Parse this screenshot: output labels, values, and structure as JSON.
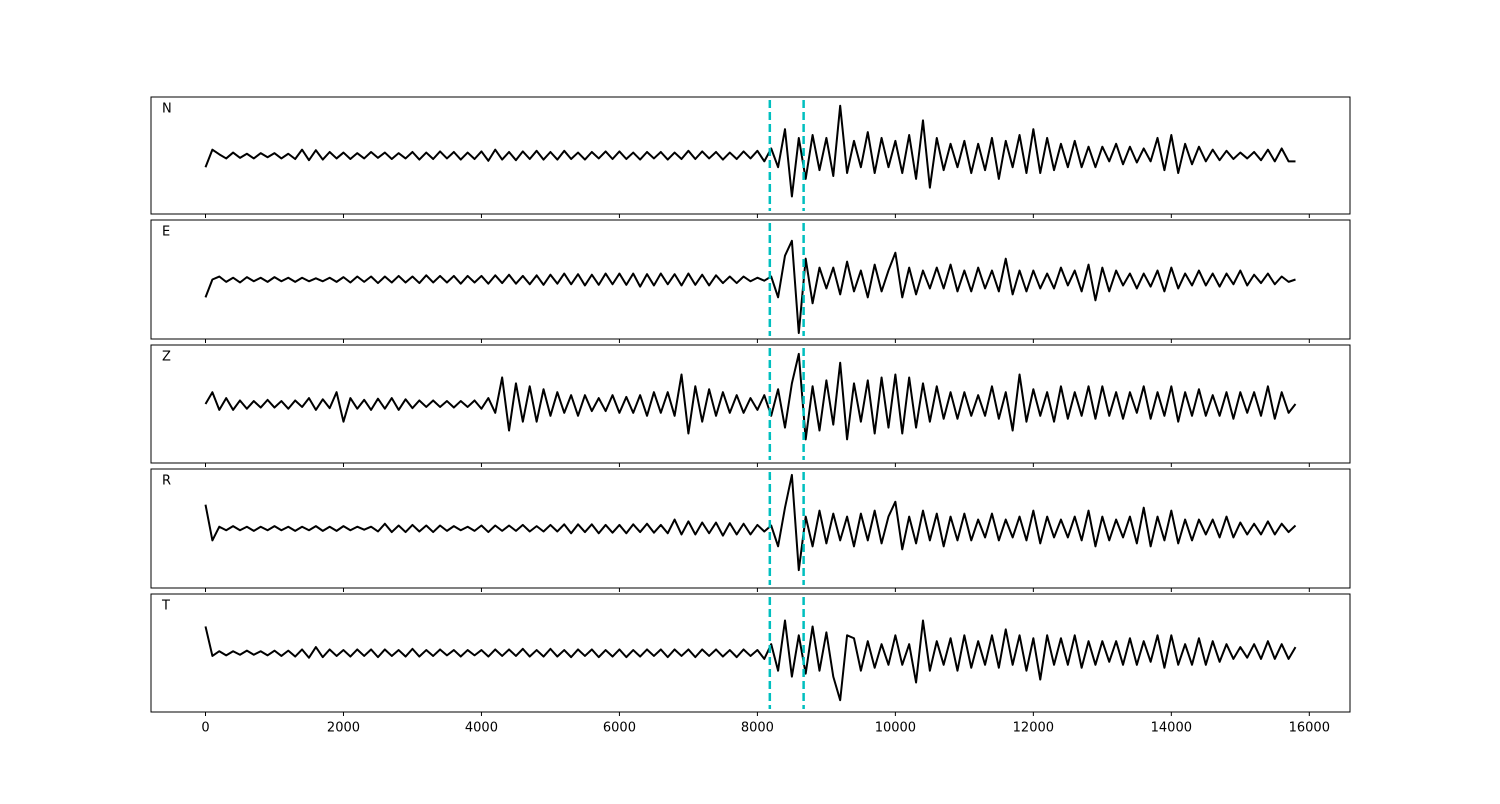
{
  "chart_data": {
    "type": "line",
    "subplots": true,
    "grid": false,
    "x": [
      0,
      100,
      200,
      300,
      400,
      500,
      600,
      700,
      800,
      900,
      1000,
      1100,
      1200,
      1300,
      1400,
      1500,
      1600,
      1700,
      1800,
      1900,
      2000,
      2100,
      2200,
      2300,
      2400,
      2500,
      2600,
      2700,
      2800,
      2900,
      3000,
      3100,
      3200,
      3300,
      3400,
      3500,
      3600,
      3700,
      3800,
      3900,
      4000,
      4100,
      4200,
      4300,
      4400,
      4500,
      4600,
      4700,
      4800,
      4900,
      5000,
      5100,
      5200,
      5300,
      5400,
      5500,
      5600,
      5700,
      5800,
      5900,
      6000,
      6100,
      6200,
      6300,
      6400,
      6500,
      6600,
      6700,
      6800,
      6900,
      7000,
      7100,
      7200,
      7300,
      7400,
      7500,
      7600,
      7700,
      7800,
      7900,
      8000,
      8100,
      8200,
      8300,
      8400,
      8500,
      8600,
      8700,
      8800,
      8900,
      9000,
      9100,
      9200,
      9300,
      9400,
      9500,
      9600,
      9700,
      9800,
      9900,
      10000,
      10100,
      10200,
      10300,
      10400,
      10500,
      10600,
      10700,
      10800,
      10900,
      11000,
      11100,
      11200,
      11300,
      11400,
      11500,
      11600,
      11700,
      11800,
      11900,
      12000,
      12100,
      12200,
      12300,
      12400,
      12500,
      12600,
      12700,
      12800,
      12900,
      13000,
      13100,
      13200,
      13300,
      13400,
      13500,
      13600,
      13700,
      13800,
      13900,
      14000,
      14100,
      14200,
      14300,
      14400,
      14500,
      14600,
      14700,
      14800,
      14900,
      15000,
      15100,
      15200,
      15300,
      15400,
      15500,
      15600,
      15700,
      15800
    ],
    "xlim": [
      -790,
      16590
    ],
    "xticks": [
      0,
      2000,
      4000,
      6000,
      8000,
      10000,
      12000,
      14000,
      16000
    ],
    "ylim": [
      -1,
      1
    ],
    "markers": [
      8180,
      8670
    ],
    "marker_color": "#00bfbf",
    "series": [
      {
        "name": "N",
        "color": "#000000",
        "values": [
          -0.2,
          0.1,
          0.02,
          -0.05,
          0.05,
          -0.04,
          0.03,
          -0.05,
          0.04,
          -0.03,
          0.04,
          -0.05,
          0.03,
          -0.06,
          0.1,
          -0.08,
          0.09,
          -0.07,
          0.06,
          -0.05,
          0.05,
          -0.06,
          0.04,
          -0.05,
          0.06,
          -0.04,
          0.05,
          -0.06,
          0.04,
          -0.05,
          0.06,
          -0.07,
          0.05,
          -0.06,
          0.07,
          -0.05,
          0.06,
          -0.07,
          0.05,
          -0.06,
          0.07,
          -0.09,
          0.1,
          -0.07,
          0.06,
          -0.08,
          0.07,
          -0.06,
          0.08,
          -0.07,
          0.06,
          -0.07,
          0.08,
          -0.06,
          0.05,
          -0.07,
          0.06,
          -0.05,
          0.07,
          -0.06,
          0.07,
          -0.06,
          0.05,
          -0.07,
          0.06,
          -0.05,
          0.06,
          -0.07,
          0.05,
          -0.06,
          0.08,
          -0.06,
          0.07,
          -0.05,
          0.06,
          -0.07,
          0.05,
          -0.06,
          0.07,
          -0.05,
          0.08,
          -0.1,
          0.12,
          -0.2,
          0.45,
          -0.7,
          0.3,
          -0.4,
          0.35,
          -0.25,
          0.3,
          -0.35,
          0.85,
          -0.3,
          0.25,
          -0.2,
          0.4,
          -0.3,
          0.3,
          -0.2,
          0.25,
          -0.3,
          0.35,
          -0.4,
          0.6,
          -0.55,
          0.3,
          -0.25,
          0.2,
          -0.2,
          0.25,
          -0.3,
          0.2,
          -0.25,
          0.3,
          -0.4,
          0.25,
          -0.2,
          0.35,
          -0.3,
          0.45,
          -0.3,
          0.3,
          -0.25,
          0.2,
          -0.2,
          0.25,
          -0.2,
          0.15,
          -0.2,
          0.15,
          -0.1,
          0.2,
          -0.15,
          0.15,
          -0.12,
          0.12,
          -0.1,
          0.3,
          -0.25,
          0.35,
          -0.3,
          0.2,
          -0.15,
          0.15,
          -0.1,
          0.1,
          -0.08,
          0.08,
          -0.06,
          0.05,
          -0.05,
          0.06,
          -0.08,
          0.1,
          -0.1,
          0.12,
          -0.1,
          -0.1
        ]
      },
      {
        "name": "E",
        "color": "#000000",
        "values": [
          -0.3,
          0.0,
          0.05,
          -0.04,
          0.03,
          -0.05,
          0.04,
          -0.03,
          0.03,
          -0.04,
          0.04,
          -0.03,
          0.03,
          -0.04,
          0.03,
          -0.03,
          0.02,
          -0.03,
          0.03,
          -0.04,
          0.04,
          -0.05,
          0.05,
          -0.04,
          0.05,
          -0.06,
          0.05,
          -0.05,
          0.06,
          -0.05,
          0.05,
          -0.06,
          0.07,
          -0.05,
          0.06,
          -0.05,
          0.06,
          -0.07,
          0.06,
          -0.05,
          0.06,
          -0.07,
          0.07,
          -0.06,
          0.08,
          -0.07,
          0.06,
          -0.08,
          0.07,
          -0.09,
          0.08,
          -0.07,
          0.1,
          -0.08,
          0.09,
          -0.1,
          0.08,
          -0.09,
          0.1,
          -0.08,
          0.1,
          -0.09,
          0.1,
          -0.12,
          0.09,
          -0.1,
          0.1,
          -0.08,
          0.09,
          -0.1,
          0.1,
          -0.09,
          0.08,
          -0.1,
          0.07,
          -0.06,
          0.05,
          -0.06,
          0.05,
          -0.03,
          0.03,
          -0.02,
          0.05,
          -0.3,
          0.4,
          0.65,
          -0.9,
          0.35,
          -0.4,
          0.2,
          -0.15,
          0.2,
          -0.25,
          0.3,
          -0.2,
          0.15,
          -0.3,
          0.25,
          -0.2,
          0.15,
          0.45,
          -0.3,
          0.2,
          -0.25,
          0.15,
          -0.15,
          0.2,
          -0.15,
          0.25,
          -0.2,
          0.15,
          -0.2,
          0.2,
          -0.15,
          0.15,
          -0.2,
          0.35,
          -0.25,
          0.15,
          -0.2,
          0.15,
          -0.15,
          0.1,
          -0.15,
          0.2,
          -0.1,
          0.15,
          -0.2,
          0.25,
          -0.35,
          0.2,
          -0.2,
          0.15,
          -0.1,
          0.1,
          -0.15,
          0.1,
          -0.12,
          0.15,
          -0.2,
          0.2,
          -0.15,
          0.1,
          -0.1,
          0.15,
          -0.1,
          0.1,
          -0.12,
          0.1,
          -0.08,
          0.15,
          -0.1,
          0.08,
          -0.06,
          0.1,
          -0.08,
          0.05,
          -0.04,
          0.0
        ]
      },
      {
        "name": "Z",
        "color": "#000000",
        "values": [
          0.0,
          0.2,
          -0.1,
          0.1,
          -0.1,
          0.06,
          -0.08,
          0.05,
          -0.06,
          0.07,
          -0.06,
          0.05,
          -0.08,
          0.06,
          -0.05,
          0.1,
          -0.1,
          0.08,
          -0.07,
          0.2,
          -0.3,
          0.1,
          -0.08,
          0.07,
          -0.1,
          0.09,
          -0.08,
          0.1,
          -0.1,
          0.08,
          -0.07,
          0.06,
          -0.05,
          0.06,
          -0.05,
          0.05,
          -0.06,
          0.05,
          -0.05,
          0.06,
          -0.08,
          0.1,
          -0.15,
          0.45,
          -0.45,
          0.35,
          -0.3,
          0.3,
          -0.3,
          0.25,
          -0.2,
          0.2,
          -0.15,
          0.15,
          -0.2,
          0.15,
          -0.12,
          0.1,
          -0.12,
          0.15,
          -0.15,
          0.12,
          -0.15,
          0.15,
          -0.2,
          0.2,
          -0.15,
          0.2,
          -0.2,
          0.5,
          -0.5,
          0.3,
          -0.3,
          0.25,
          -0.2,
          0.2,
          -0.15,
          0.15,
          -0.15,
          0.1,
          -0.1,
          0.15,
          -0.2,
          0.25,
          -0.4,
          0.35,
          0.85,
          -0.6,
          0.3,
          -0.45,
          0.4,
          -0.35,
          0.7,
          -0.6,
          0.35,
          -0.3,
          0.4,
          -0.5,
          0.45,
          -0.4,
          0.5,
          -0.5,
          0.45,
          -0.4,
          0.35,
          -0.3,
          0.3,
          -0.25,
          0.2,
          -0.25,
          0.2,
          -0.2,
          0.15,
          -0.2,
          0.3,
          -0.25,
          0.2,
          -0.45,
          0.5,
          -0.3,
          0.25,
          -0.2,
          0.2,
          -0.3,
          0.3,
          -0.25,
          0.2,
          -0.2,
          0.3,
          -0.25,
          0.3,
          -0.2,
          0.2,
          -0.25,
          0.2,
          -0.15,
          0.3,
          -0.25,
          0.2,
          -0.2,
          0.3,
          -0.3,
          0.2,
          -0.2,
          0.25,
          -0.2,
          0.15,
          -0.2,
          0.2,
          -0.25,
          0.2,
          -0.15,
          0.2,
          -0.2,
          0.3,
          -0.25,
          0.2,
          -0.15,
          0.0
        ]
      },
      {
        "name": "R",
        "color": "#000000",
        "values": [
          0.4,
          -0.2,
          0.03,
          -0.03,
          0.04,
          -0.03,
          0.03,
          -0.04,
          0.03,
          -0.03,
          0.04,
          -0.03,
          0.03,
          -0.04,
          0.03,
          -0.03,
          0.04,
          -0.04,
          0.03,
          -0.04,
          0.04,
          -0.03,
          0.03,
          -0.02,
          0.03,
          -0.05,
          0.08,
          -0.06,
          0.05,
          -0.06,
          0.06,
          -0.05,
          0.05,
          -0.06,
          0.05,
          -0.04,
          0.04,
          -0.03,
          0.03,
          -0.04,
          0.05,
          -0.06,
          0.05,
          -0.04,
          0.05,
          -0.04,
          0.06,
          -0.05,
          0.04,
          -0.05,
          0.06,
          -0.05,
          0.07,
          -0.08,
          0.07,
          -0.06,
          0.07,
          -0.08,
          0.06,
          -0.07,
          0.06,
          -0.08,
          0.07,
          -0.06,
          0.08,
          -0.07,
          0.06,
          -0.08,
          0.15,
          -0.1,
          0.12,
          -0.1,
          0.1,
          -0.08,
          0.1,
          -0.12,
          0.09,
          -0.1,
          0.08,
          -0.1,
          0.06,
          -0.05,
          0.05,
          -0.3,
          0.35,
          0.9,
          -0.7,
          0.2,
          -0.3,
          0.3,
          -0.25,
          0.25,
          -0.2,
          0.2,
          -0.3,
          0.25,
          -0.2,
          0.3,
          -0.25,
          0.2,
          0.45,
          -0.35,
          0.2,
          -0.25,
          0.3,
          -0.2,
          0.25,
          -0.3,
          0.2,
          -0.2,
          0.25,
          -0.2,
          0.15,
          -0.15,
          0.25,
          -0.2,
          0.15,
          -0.15,
          0.2,
          -0.2,
          0.3,
          -0.25,
          0.2,
          -0.15,
          0.15,
          -0.15,
          0.2,
          -0.2,
          0.3,
          -0.3,
          0.2,
          -0.2,
          0.15,
          -0.15,
          0.2,
          -0.25,
          0.35,
          -0.3,
          0.2,
          -0.2,
          0.3,
          -0.25,
          0.15,
          -0.2,
          0.15,
          -0.1,
          0.15,
          -0.15,
          0.2,
          -0.15,
          0.1,
          -0.1,
          0.08,
          -0.1,
          0.12,
          -0.1,
          0.08,
          -0.06,
          0.05
        ]
      },
      {
        "name": "T",
        "color": "#000000",
        "values": [
          0.45,
          -0.05,
          0.03,
          -0.04,
          0.03,
          -0.03,
          0.04,
          -0.03,
          0.03,
          -0.04,
          0.04,
          -0.05,
          0.04,
          -0.06,
          0.06,
          -0.08,
          0.1,
          -0.07,
          0.06,
          -0.05,
          0.05,
          -0.06,
          0.06,
          -0.05,
          0.06,
          -0.07,
          0.06,
          -0.05,
          0.05,
          -0.06,
          0.07,
          -0.06,
          0.05,
          -0.05,
          0.06,
          -0.04,
          0.05,
          -0.06,
          0.05,
          -0.04,
          0.05,
          -0.06,
          0.06,
          -0.05,
          0.06,
          -0.05,
          0.07,
          -0.06,
          0.05,
          -0.06,
          0.07,
          -0.06,
          0.05,
          -0.07,
          0.06,
          -0.05,
          0.06,
          -0.07,
          0.05,
          -0.06,
          0.06,
          -0.07,
          0.05,
          -0.06,
          0.06,
          -0.05,
          0.06,
          -0.07,
          0.06,
          -0.05,
          0.06,
          -0.07,
          0.06,
          -0.05,
          0.06,
          -0.06,
          0.05,
          -0.07,
          0.06,
          -0.05,
          0.05,
          -0.1,
          0.15,
          -0.3,
          0.55,
          -0.4,
          0.3,
          -0.35,
          0.45,
          -0.3,
          0.35,
          -0.4,
          -0.8,
          0.3,
          0.25,
          -0.3,
          0.2,
          -0.25,
          0.15,
          -0.2,
          0.3,
          -0.2,
          0.15,
          -0.5,
          0.55,
          -0.3,
          0.2,
          -0.2,
          0.25,
          -0.3,
          0.3,
          -0.25,
          0.2,
          -0.2,
          0.3,
          -0.25,
          0.4,
          -0.2,
          0.3,
          -0.3,
          0.25,
          -0.45,
          0.3,
          -0.2,
          0.25,
          -0.2,
          0.3,
          -0.25,
          0.2,
          -0.2,
          0.2,
          -0.15,
          0.2,
          -0.2,
          0.25,
          -0.2,
          0.2,
          -0.15,
          0.3,
          -0.25,
          0.3,
          -0.2,
          0.15,
          -0.2,
          0.25,
          -0.2,
          0.2,
          -0.15,
          0.15,
          -0.1,
          0.1,
          -0.08,
          0.15,
          -0.1,
          0.2,
          -0.1,
          0.15,
          -0.1,
          0.1
        ]
      }
    ]
  }
}
